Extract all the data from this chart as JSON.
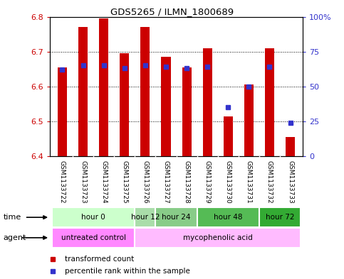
{
  "title": "GDS5265 / ILMN_1800689",
  "samples": [
    "GSM1133722",
    "GSM1133723",
    "GSM1133724",
    "GSM1133725",
    "GSM1133726",
    "GSM1133727",
    "GSM1133728",
    "GSM1133729",
    "GSM1133730",
    "GSM1133731",
    "GSM1133732",
    "GSM1133733"
  ],
  "bar_values": [
    6.655,
    6.77,
    6.795,
    6.695,
    6.77,
    6.685,
    6.655,
    6.71,
    6.515,
    6.605,
    6.71,
    6.455
  ],
  "bar_bottom": 6.4,
  "percentile_values_pct": [
    62,
    65,
    65,
    63,
    65,
    64,
    63,
    64,
    35,
    50,
    64,
    24
  ],
  "ylim": [
    6.4,
    6.8
  ],
  "yticks_left": [
    6.4,
    6.5,
    6.6,
    6.7,
    6.8
  ],
  "yticks_right": [
    0,
    25,
    50,
    75,
    100
  ],
  "bar_color": "#CC0000",
  "percentile_color": "#3333CC",
  "grid_color": "#000000",
  "time_groups": [
    {
      "label": "hour 0",
      "start": 0,
      "end": 3,
      "color": "#CCFFCC"
    },
    {
      "label": "hour 12",
      "start": 4,
      "end": 4,
      "color": "#AADDAA"
    },
    {
      "label": "hour 24",
      "start": 5,
      "end": 6,
      "color": "#88CC88"
    },
    {
      "label": "hour 48",
      "start": 7,
      "end": 9,
      "color": "#55BB55"
    },
    {
      "label": "hour 72",
      "start": 10,
      "end": 11,
      "color": "#33AA33"
    }
  ],
  "agent_groups": [
    {
      "label": "untreated control",
      "start": 0,
      "end": 3,
      "color": "#FF88FF"
    },
    {
      "label": "mycophenolic acid",
      "start": 4,
      "end": 11,
      "color": "#FFBBFF"
    }
  ],
  "bar_width": 0.45
}
